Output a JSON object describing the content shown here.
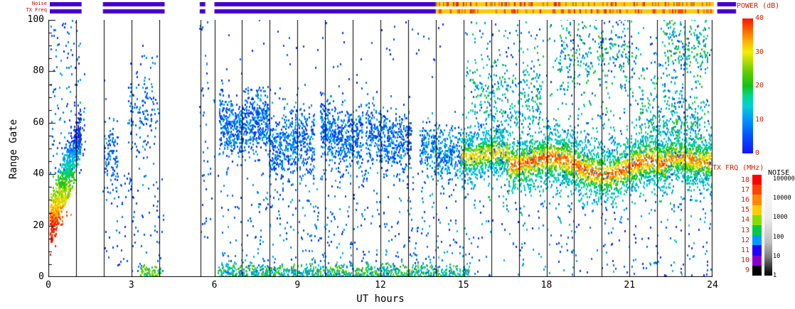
{
  "strips": {
    "labels": [
      "Noise",
      "TX Freq"
    ],
    "label_color": "#c80000",
    "rows": [
      {
        "name": "noise-strip",
        "segments": [
          {
            "t0": 0.0,
            "t1": 1.15,
            "type": "solid",
            "color": "#4400cc"
          },
          {
            "t0": 1.92,
            "t1": 4.15,
            "type": "solid",
            "color": "#4400cc"
          },
          {
            "t0": 5.42,
            "t1": 5.62,
            "type": "solid",
            "color": "#4400cc"
          },
          {
            "t0": 5.95,
            "t1": 13.95,
            "type": "solid",
            "color": "#4400cc"
          },
          {
            "t0": 13.95,
            "t1": 24.0,
            "type": "speckle",
            "base": "#ffcc00",
            "speckles": [
              "#ff7700",
              "#e82200",
              "#cc8800"
            ],
            "density": 0.38
          },
          {
            "t0": 24.12,
            "t1": 24.8,
            "type": "solid",
            "color": "#4400cc"
          }
        ]
      },
      {
        "name": "txfreq-strip",
        "segments": [
          {
            "t0": 0.0,
            "t1": 1.15,
            "type": "solid",
            "color": "#4400cc"
          },
          {
            "t0": 1.92,
            "t1": 4.15,
            "type": "solid",
            "color": "#4400cc"
          },
          {
            "t0": 5.42,
            "t1": 5.62,
            "type": "solid",
            "color": "#4400cc"
          },
          {
            "t0": 5.95,
            "t1": 13.95,
            "type": "solid",
            "color": "#4400cc"
          },
          {
            "t0": 13.95,
            "t1": 24.0,
            "type": "speckle",
            "base": "#ffcc00",
            "speckles": [
              "#ff7700",
              "#e82200",
              "#ff4400"
            ],
            "density": 0.3
          },
          {
            "t0": 24.12,
            "t1": 24.8,
            "type": "solid",
            "color": "#4400cc"
          }
        ]
      }
    ]
  },
  "chart_data": {
    "type": "heatmap",
    "description": "Radar range-time-intensity plot: backscatter power (dB) versus UT time and range gate. Echo regions approximated as point clusters.",
    "xlabel": "UT hours",
    "ylabel": "Range Gate",
    "xlim": [
      0,
      24
    ],
    "ylim": [
      0,
      100
    ],
    "x_ticks": [
      0,
      3,
      6,
      9,
      12,
      15,
      18,
      21,
      24
    ],
    "y_ticks": [
      0,
      20,
      40,
      60,
      80,
      100
    ],
    "gridline_hours": [
      1,
      2,
      3,
      4,
      5.5,
      6,
      7,
      8,
      9,
      10,
      11,
      12,
      13,
      14,
      15,
      16,
      17,
      18,
      19,
      20,
      21,
      22,
      23
    ],
    "clusters": [
      {
        "name": "dawn-streak",
        "mode": "streak",
        "t0": 0.05,
        "t1": 1.15,
        "count": 900,
        "g0": 20,
        "g1": 55,
        "spread": 5,
        "pmin": 2,
        "pmax": 40
      },
      {
        "name": "dawn-upper-scatter",
        "mode": "uniform",
        "t0": 0.05,
        "t1": 1.3,
        "count": 130,
        "g0": 40,
        "g1": 100,
        "pmin": 1,
        "pmax": 12
      },
      {
        "name": "morning-low-scatter",
        "mode": "uniform",
        "t0": 1.92,
        "t1": 4.15,
        "count": 90,
        "g0": 2,
        "g1": 40,
        "pmin": 1,
        "pmax": 10
      },
      {
        "name": "morning-band-1",
        "mode": "band",
        "t0": 2.0,
        "t1": 2.5,
        "count": 110,
        "g0": 50,
        "g1": 45,
        "spread": 8,
        "pmin": 1,
        "pmax": 12
      },
      {
        "name": "morning-band-2",
        "mode": "band",
        "t0": 2.85,
        "t1": 3.95,
        "count": 150,
        "g0": 60,
        "g1": 68,
        "spread": 9,
        "pmin": 1,
        "pmax": 12
      },
      {
        "name": "morning-ground-green",
        "mode": "band",
        "t0": 3.3,
        "t1": 4.05,
        "count": 80,
        "g0": 1.5,
        "g1": 1.5,
        "spread": 1.5,
        "pmin": 12,
        "pmax": 30
      },
      {
        "name": "gap-column",
        "mode": "uniform",
        "t0": 5.42,
        "t1": 6.0,
        "count": 45,
        "g0": 10,
        "g1": 100,
        "pmin": 1,
        "pmax": 10
      },
      {
        "name": "midday-band-a",
        "mode": "band",
        "t0": 6.15,
        "t1": 7.95,
        "count": 650,
        "g0": 62,
        "g1": 57,
        "spread": 6,
        "wobble": [
          3,
          1.3
        ],
        "pmin": 1,
        "pmax": 13
      },
      {
        "name": "midday-band-b",
        "mode": "band",
        "t0": 7.95,
        "t1": 9.6,
        "count": 520,
        "g0": 53,
        "g1": 50,
        "spread": 7,
        "wobble": [
          3,
          1.1
        ],
        "pmin": 1,
        "pmax": 13
      },
      {
        "name": "midday-band-c",
        "mode": "band",
        "t0": 9.8,
        "t1": 11.35,
        "count": 520,
        "g0": 58,
        "g1": 55,
        "spread": 6,
        "wobble": [
          3,
          1.4
        ],
        "pmin": 1,
        "pmax": 13
      },
      {
        "name": "midday-band-d",
        "mode": "band",
        "t0": 11.45,
        "t1": 13.1,
        "count": 480,
        "g0": 57,
        "g1": 53,
        "spread": 6,
        "wobble": [
          2.5,
          1.2
        ],
        "pmin": 1,
        "pmax": 13
      },
      {
        "name": "midday-band-e",
        "mode": "band",
        "t0": 13.4,
        "t1": 15.0,
        "count": 420,
        "g0": 50,
        "g1": 47,
        "spread": 5,
        "pmin": 2,
        "pmax": 16
      },
      {
        "name": "midday-bottom-line",
        "mode": "band",
        "t0": 6.1,
        "t1": 15.2,
        "count": 1000,
        "g0": 1.5,
        "g1": 1.5,
        "spread": 1.8,
        "pmin": 6,
        "pmax": 26
      },
      {
        "name": "midday-low-scatter",
        "mode": "uniform",
        "t0": 6.1,
        "t1": 15.2,
        "count": 420,
        "g0": 4,
        "g1": 42,
        "pmin": 1,
        "pmax": 13
      },
      {
        "name": "midday-high-scatter",
        "mode": "uniform",
        "t0": 6.2,
        "t1": 14.5,
        "count": 60,
        "g0": 70,
        "g1": 100,
        "pmin": 1,
        "pmax": 8
      },
      {
        "name": "evening-band-1",
        "mode": "band",
        "hot": true,
        "t0": 14.9,
        "t1": 16.6,
        "count": 650,
        "g0": 49,
        "g1": 46,
        "spread": 5,
        "wobble": [
          2,
          1.0
        ],
        "pmin": 8,
        "pmax": 34
      },
      {
        "name": "evening-band-2",
        "mode": "band",
        "hot": true,
        "t0": 16.6,
        "t1": 19.6,
        "count": 1250,
        "g0": 46,
        "g1": 42,
        "spread": 5.5,
        "wobble": [
          2.5,
          0.9
        ],
        "pmin": 10,
        "pmax": 40
      },
      {
        "name": "evening-band-3",
        "mode": "band",
        "hot": true,
        "t0": 19.6,
        "t1": 22.3,
        "count": 1100,
        "g0": 42,
        "g1": 43,
        "spread": 5.5,
        "wobble": [
          2.5,
          1.05
        ],
        "pmin": 10,
        "pmax": 40
      },
      {
        "name": "evening-band-4",
        "mode": "band",
        "hot": true,
        "t0": 22.3,
        "t1": 24.0,
        "count": 750,
        "g0": 44,
        "g1": 47,
        "spread": 5,
        "wobble": [
          2,
          1.15
        ],
        "pmin": 10,
        "pmax": 38
      },
      {
        "name": "evening-band-halo",
        "mode": "band",
        "t0": 15.0,
        "t1": 24.0,
        "count": 500,
        "g0": 48,
        "g1": 44,
        "spread": 11,
        "pmin": 4,
        "pmax": 20
      },
      {
        "name": "evening-upper-scatter",
        "mode": "uniform",
        "t0": 15.0,
        "t1": 24.0,
        "count": 380,
        "g0": 55,
        "g1": 100,
        "pmin": 2,
        "pmax": 20
      },
      {
        "name": "evening-upper-cluster-a",
        "mode": "band",
        "t0": 15.3,
        "t1": 17.8,
        "count": 260,
        "g0": 72,
        "g1": 68,
        "spread": 8,
        "pmin": 4,
        "pmax": 22
      },
      {
        "name": "evening-upper-cluster-b",
        "mode": "band",
        "t0": 18.4,
        "t1": 21.1,
        "count": 240,
        "g0": 85,
        "g1": 88,
        "spread": 7,
        "pmin": 4,
        "pmax": 22
      },
      {
        "name": "evening-upper-cluster-c",
        "mode": "band",
        "t0": 21.3,
        "t1": 23.7,
        "count": 300,
        "g0": 65,
        "g1": 60,
        "spread": 8,
        "pmin": 6,
        "pmax": 24
      },
      {
        "name": "evening-upper-cluster-d",
        "mode": "band",
        "t0": 22.2,
        "t1": 23.8,
        "count": 180,
        "g0": 90,
        "g1": 88,
        "spread": 6,
        "pmin": 6,
        "pmax": 24
      },
      {
        "name": "evening-bottom-scatter",
        "mode": "uniform",
        "t0": 15.2,
        "t1": 24.0,
        "count": 230,
        "g0": 0,
        "g1": 30,
        "pmin": 1,
        "pmax": 14
      }
    ]
  },
  "colorbars": {
    "power": {
      "title": "POWER (dB)",
      "ticks": [
        0,
        10,
        20,
        30,
        40
      ],
      "min": 0,
      "max": 40,
      "stops": [
        {
          "v": 0,
          "c": "#1414ff"
        },
        {
          "v": 5,
          "c": "#0050ff"
        },
        {
          "v": 10,
          "c": "#0095ff"
        },
        {
          "v": 14,
          "c": "#00cfd8"
        },
        {
          "v": 17,
          "c": "#00d88e"
        },
        {
          "v": 20,
          "c": "#14c214"
        },
        {
          "v": 24,
          "c": "#5ccb00"
        },
        {
          "v": 27,
          "c": "#aadc00"
        },
        {
          "v": 30,
          "c": "#f2ee00"
        },
        {
          "v": 33,
          "c": "#ffb400"
        },
        {
          "v": 36,
          "c": "#ff7000"
        },
        {
          "v": 40,
          "c": "#ff1400"
        }
      ]
    },
    "txfrq": {
      "title": "TX FRQ (MHz)",
      "values": [
        9,
        10,
        11,
        12,
        13,
        14,
        15,
        16,
        17,
        18
      ],
      "colors": [
        "#000000",
        "#8800cc",
        "#2200ff",
        "#0099ff",
        "#00cc44",
        "#88dd00",
        "#ffcc00",
        "#ff8800",
        "#ff4400",
        "#ff0000"
      ],
      "label_color": "#d42000"
    },
    "noise": {
      "title": "NOISE",
      "tick_labels": [
        "100000",
        "10000",
        "1000",
        "100",
        "10",
        "1"
      ],
      "stops": [
        {
          "p": 0,
          "c": "#000000"
        },
        {
          "p": 0.08,
          "c": "#303030"
        },
        {
          "p": 0.2,
          "c": "#808080"
        },
        {
          "p": 0.35,
          "c": "#c0c0c0"
        },
        {
          "p": 0.6,
          "c": "#ececec"
        },
        {
          "p": 1,
          "c": "#ffffff"
        }
      ]
    }
  }
}
